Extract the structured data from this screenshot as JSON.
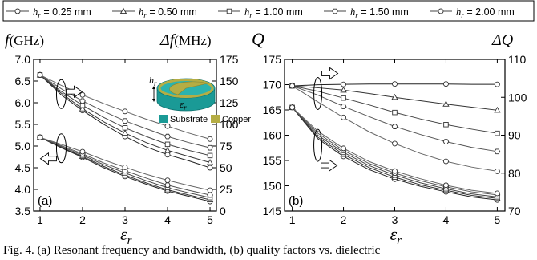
{
  "legend": {
    "entries": [
      "h_r = 0.25 mm",
      "h_r = 0.50 mm",
      "h_r = 1.00 mm",
      "h_r = 1.50 mm",
      "h_r = 2.00 mm"
    ],
    "markers": [
      "circle",
      "triangle",
      "square",
      "hexagon",
      "circle"
    ]
  },
  "inset": {
    "dim_label": "h_r",
    "eps_label": "ε_r",
    "substrate_label": "Substrate",
    "copper_label": "Copper",
    "colors": {
      "substrate": "#1a9a96",
      "copper": "#b5ad44"
    }
  },
  "caption": "Fig. 4. (a) Resonant frequency and bandwidth, (b) quality factors vs. dielectric",
  "chart_data": [
    {
      "type": "line",
      "panel_label": "(a)",
      "xlabel": "ε_r",
      "ylabel_left": "f (GHz)",
      "ylabel_right": "Δf (MHz)",
      "xlim": [
        0.85,
        5.15
      ],
      "ylim_left": [
        3.5,
        7.0
      ],
      "ylim_right": [
        0,
        175
      ],
      "x_ticks": [
        1,
        2,
        3,
        4,
        5
      ],
      "y_ticks_left": [
        "3.5",
        "4.0",
        "4.5",
        "5.0",
        "5.5",
        "6.0",
        "6.5",
        "7.0"
      ],
      "y_ticks_right": [
        "0",
        "25",
        "50",
        "75",
        "100",
        "125",
        "150",
        "175"
      ],
      "x": [
        1,
        1.5,
        2,
        2.5,
        3,
        3.5,
        4,
        4.5,
        5
      ],
      "frequency_series": [
        {
          "name": "h_r = 0.25 mm",
          "values": [
            5.2,
            4.96,
            4.74,
            4.5,
            4.3,
            4.12,
            3.96,
            3.84,
            3.72
          ]
        },
        {
          "name": "h_r = 0.50 mm",
          "values": [
            5.2,
            4.97,
            4.76,
            4.53,
            4.33,
            4.15,
            3.99,
            3.87,
            3.76
          ]
        },
        {
          "name": "h_r = 1.00 mm",
          "values": [
            5.2,
            4.99,
            4.79,
            4.57,
            4.38,
            4.2,
            4.04,
            3.92,
            3.81
          ]
        },
        {
          "name": "h_r = 1.50 mm",
          "values": [
            5.2,
            5.01,
            4.82,
            4.61,
            4.43,
            4.26,
            4.1,
            3.98,
            3.87
          ]
        },
        {
          "name": "h_r = 2.00 mm",
          "values": [
            5.2,
            5.04,
            4.87,
            4.68,
            4.51,
            4.35,
            4.21,
            4.09,
            3.98
          ]
        }
      ],
      "bandwidth_series": [
        {
          "name": "h_r = 0.25 mm",
          "values": [
            157,
            134,
            116,
            100,
            86,
            74,
            65,
            58,
            50
          ]
        },
        {
          "name": "h_r = 0.50 mm",
          "values": [
            157,
            136,
            118,
            103,
            90,
            79,
            70,
            63,
            56
          ]
        },
        {
          "name": "h_r = 1.00 mm",
          "values": [
            157,
            138,
            122,
            108,
            96,
            86,
            77,
            70,
            64
          ]
        },
        {
          "name": "h_r = 1.50 mm",
          "values": [
            157,
            141,
            127,
            115,
            104,
            95,
            86,
            79,
            73
          ]
        },
        {
          "name": "h_r = 2.00 mm",
          "values": [
            157,
            145,
            134,
            124,
            115,
            106,
            98,
            90,
            83
          ]
        }
      ]
    },
    {
      "type": "line",
      "panel_label": "(b)",
      "xlabel": "ε_r",
      "ylabel_left": "Q",
      "ylabel_right": "ΔQ",
      "xlim": [
        0.85,
        5.15
      ],
      "ylim_left": [
        145,
        175
      ],
      "ylim_right": [
        70,
        110
      ],
      "x_ticks": [
        1,
        2,
        3,
        4,
        5
      ],
      "y_ticks_left": [
        "145",
        "150",
        "155",
        "160",
        "165",
        "170",
        "175"
      ],
      "y_ticks_right": [
        "70",
        "80",
        "90",
        "100",
        "110"
      ],
      "x": [
        1,
        1.5,
        2,
        2.5,
        3,
        3.5,
        4,
        4.5,
        5
      ],
      "q_series": [
        {
          "name": "h_r = 0.25 mm",
          "values": [
            165.5,
            159.3,
            155.8,
            153.2,
            151.3,
            149.9,
            148.8,
            147.8,
            147.2
          ]
        },
        {
          "name": "h_r = 0.50 mm",
          "values": [
            165.5,
            159.6,
            156.2,
            153.6,
            151.7,
            150.2,
            149.1,
            148.1,
            147.5
          ]
        },
        {
          "name": "h_r = 1.00 mm",
          "values": [
            165.5,
            160.0,
            156.6,
            154.0,
            152.1,
            150.6,
            149.4,
            148.4,
            147.8
          ]
        },
        {
          "name": "h_r = 1.50 mm",
          "values": [
            165.5,
            160.4,
            157.0,
            154.4,
            152.5,
            151.0,
            149.8,
            148.8,
            148.2
          ]
        },
        {
          "name": "h_r = 2.00 mm",
          "values": [
            165.5,
            160.8,
            157.4,
            154.8,
            152.9,
            151.4,
            150.1,
            149.1,
            148.5
          ]
        }
      ],
      "dq_series": [
        {
          "name": "h_r = 0.25 mm",
          "values": [
            103,
            103.3,
            103.4,
            103.5,
            103.5,
            103.5,
            103.5,
            103.4,
            103.4
          ]
        },
        {
          "name": "h_r = 0.50 mm",
          "values": [
            103,
            102.5,
            101.9,
            101.0,
            100.0,
            99.1,
            98.2,
            97.4,
            96.6
          ]
        },
        {
          "name": "h_r = 1.00 mm",
          "values": [
            103,
            101.6,
            99.8,
            98.0,
            96.0,
            94.3,
            92.8,
            91.6,
            90.5
          ]
        },
        {
          "name": "h_r = 1.50 mm",
          "values": [
            103,
            100.6,
            97.6,
            94.9,
            92.3,
            90.2,
            88.3,
            86.8,
            85.7
          ]
        },
        {
          "name": "h_r = 2.00 mm",
          "values": [
            103,
            98.8,
            94.7,
            90.9,
            87.8,
            85.2,
            83.1,
            81.6,
            80.5
          ]
        }
      ]
    }
  ]
}
